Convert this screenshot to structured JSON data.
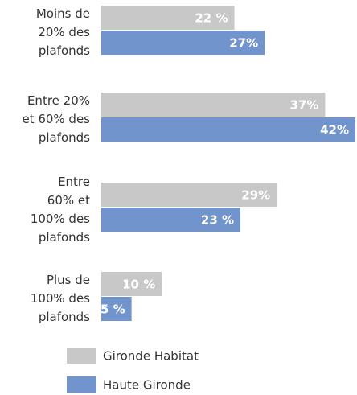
{
  "chart_data": {
    "type": "bar",
    "orientation": "horizontal",
    "categories": [
      "Moins de\n20% des\nplafonds",
      "Entre 20%\net 60% des\nplafonds",
      "Entre\n60% et\n100% des\nplafonds",
      "Plus de\n100% des\nplafonds"
    ],
    "series": [
      {
        "name": "Gironde Habitat",
        "color": "#c8c8c8",
        "values": [
          22,
          37,
          29,
          10
        ],
        "value_labels": [
          "22 %",
          "37%",
          "29%",
          "10 %"
        ]
      },
      {
        "name": "Haute Gironde",
        "color": "#7094cb",
        "values": [
          27,
          42,
          23,
          5
        ],
        "value_labels": [
          "27%",
          "42%",
          "23 %",
          "5 %"
        ]
      }
    ]
  }
}
